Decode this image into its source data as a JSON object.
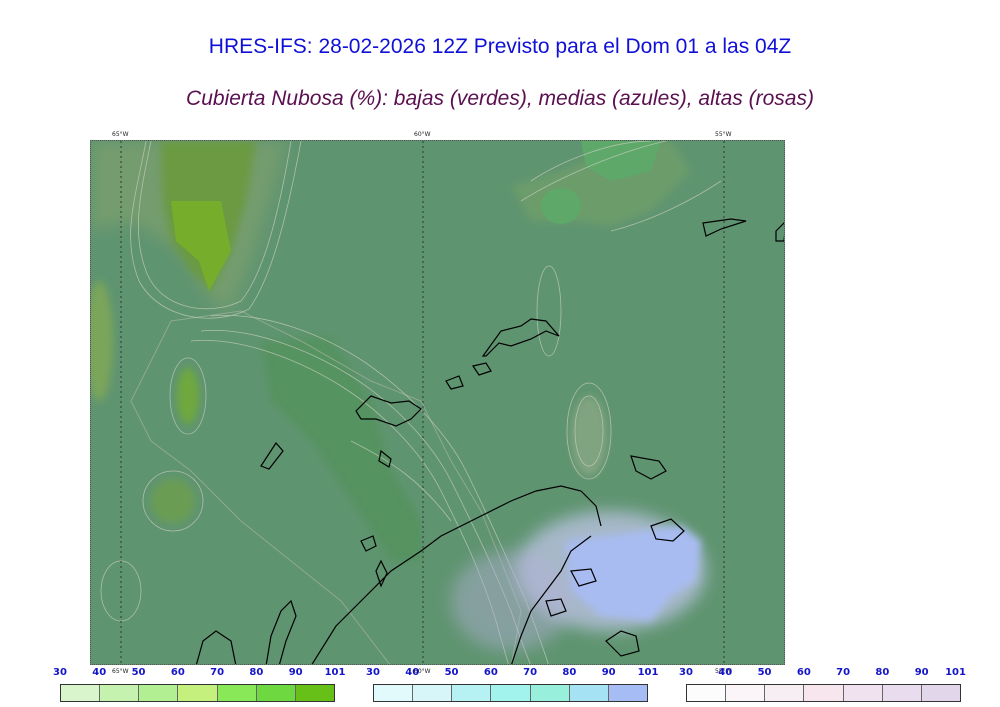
{
  "header": {
    "title": "HRES-IFS: 28-02-2026 12Z Previsto para el Dom 01 a las 04Z",
    "subtitle": "Cubierta Nubosa (%): bajas (verdes), medias (azules), altas (rosas)"
  },
  "map": {
    "background_color": "#5f9470",
    "meridian_labels_top": [
      "65°W",
      "60°W",
      "55°W"
    ],
    "meridian_labels_bottom": [
      "65°W",
      "60°W",
      "55°W"
    ]
  },
  "scales": {
    "low": {
      "ticks": [
        "30",
        "40",
        "50",
        "60",
        "70",
        "80",
        "90",
        "101"
      ],
      "colors": [
        "#d8f5cc",
        "#c6f2b0",
        "#b2ef92",
        "#c6f07e",
        "#88e858",
        "#6ed840",
        "#66c018"
      ]
    },
    "mid": {
      "ticks": [
        "30",
        "40",
        "50",
        "60",
        "70",
        "80",
        "90",
        "101"
      ],
      "colors": [
        "#e2fafc",
        "#d6f6fa",
        "#b6f2f4",
        "#a2f2ee",
        "#98f0dc",
        "#a4e2f4",
        "#a6bcf4"
      ]
    },
    "high": {
      "ticks": [
        "30",
        "40",
        "50",
        "60",
        "70",
        "80",
        "90",
        "101"
      ],
      "colors": [
        "#fcfcfc",
        "#fbf4f8",
        "#f6eef2",
        "#f8e6ee",
        "#f0e2ee",
        "#e8dcee",
        "#e2d6ea"
      ]
    }
  }
}
